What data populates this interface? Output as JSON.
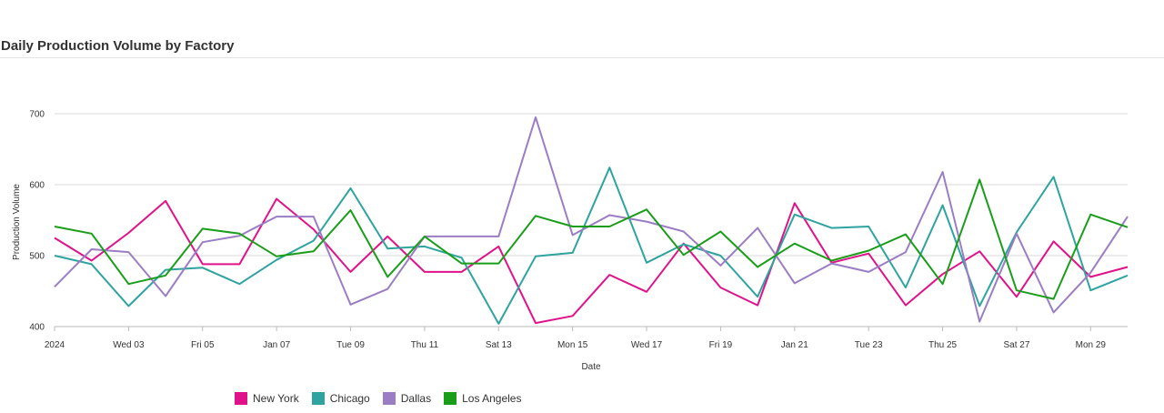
{
  "page": {
    "title": "Daily Production Volume by Factory"
  },
  "colors": {
    "New York": "#e0128a",
    "Chicago": "#2ea3a0",
    "Dallas": "#9b7dc4",
    "Los Angeles": "#1a9e1a",
    "grid": "#d9d9d9",
    "axis": "#bbbbbb"
  },
  "chart_data": {
    "type": "line",
    "title": "Daily Production Volume by Factory",
    "xlabel": "Date",
    "ylabel": "Production Volume",
    "ylim": [
      400,
      700
    ],
    "yticks": [
      400,
      500,
      600,
      700
    ],
    "grid": true,
    "legend_position": "bottom-left",
    "x": [
      "2024-01-01",
      "2024-01-02",
      "2024-01-03",
      "2024-01-04",
      "2024-01-05",
      "2024-01-06",
      "2024-01-07",
      "2024-01-08",
      "2024-01-09",
      "2024-01-10",
      "2024-01-11",
      "2024-01-12",
      "2024-01-13",
      "2024-01-14",
      "2024-01-15",
      "2024-01-16",
      "2024-01-17",
      "2024-01-18",
      "2024-01-19",
      "2024-01-20",
      "2024-01-21",
      "2024-01-22",
      "2024-01-23",
      "2024-01-24",
      "2024-01-25",
      "2024-01-26",
      "2024-01-27",
      "2024-01-28",
      "2024-01-29",
      "2024-01-30"
    ],
    "xtick_labels": [
      "2024",
      "Wed 03",
      "Fri 05",
      "Jan 07",
      "Tue 09",
      "Thu 11",
      "Sat 13",
      "Mon 15",
      "Wed 17",
      "Fri 19",
      "Jan 21",
      "Tue 23",
      "Thu 25",
      "Sat 27",
      "Mon 29"
    ],
    "series": [
      {
        "name": "New York",
        "values": [
          525,
          493,
          532,
          577,
          488,
          488,
          580,
          537,
          477,
          527,
          477,
          477,
          513,
          405,
          415,
          473,
          449,
          517,
          455,
          430,
          574,
          490,
          503,
          430,
          474,
          506,
          442,
          520,
          470,
          484
        ]
      },
      {
        "name": "Chicago",
        "values": [
          500,
          488,
          429,
          480,
          483,
          460,
          494,
          521,
          595,
          510,
          513,
          497,
          404,
          499,
          504,
          624,
          490,
          516,
          500,
          442,
          558,
          539,
          541,
          455,
          571,
          429,
          533,
          611,
          451,
          472
        ]
      },
      {
        "name": "Dallas",
        "values": [
          456,
          509,
          505,
          443,
          519,
          528,
          555,
          555,
          431,
          453,
          527,
          527,
          527,
          695,
          529,
          557,
          548,
          534,
          486,
          539,
          461,
          489,
          477,
          505,
          618,
          407,
          531,
          420,
          476,
          555
        ]
      },
      {
        "name": "Los Angeles",
        "values": [
          541,
          531,
          460,
          472,
          538,
          531,
          499,
          506,
          564,
          470,
          527,
          489,
          489,
          556,
          541,
          541,
          565,
          501,
          534,
          484,
          517,
          493,
          507,
          530,
          460,
          607,
          451,
          439,
          558,
          540
        ]
      }
    ]
  }
}
